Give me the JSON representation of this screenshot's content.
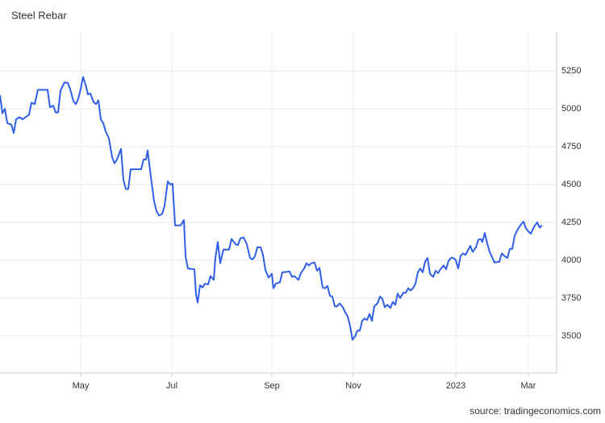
{
  "chart_data": {
    "type": "line",
    "title": "Steel Rebar",
    "source": "source: tradingeconomics.com",
    "x": [
      0,
      1.2,
      2.4,
      3.6,
      5.6,
      6.8,
      8,
      9.6,
      11.2,
      14.4,
      15.6,
      17.2,
      18.8,
      23.6,
      24.8,
      26.4,
      27.6,
      28.8,
      30,
      32,
      33.6,
      34.8,
      36.4,
      37.6,
      38.8,
      40,
      41.2,
      42.4,
      43.6,
      44.8,
      46.4,
      47.6,
      48.8,
      50,
      51.2,
      52.4,
      54,
      55.6,
      56.8,
      58,
      60,
      61.2,
      62.4,
      63.6,
      64.8,
      70,
      71.2,
      72.4,
      73.2,
      74.8,
      76.4,
      77.6,
      78.8,
      80.4,
      81.6,
      83.2,
      84.4,
      85.6,
      86.8,
      89.6,
      91.2,
      92,
      93.2,
      96.4,
      97.2,
      98,
      99.2,
      100.4,
      101.6,
      103.2,
      104.4,
      106,
      106.8,
      108,
      109.2,
      110.8,
      113.6,
      114.8,
      116.8,
      118,
      119.2,
      120.8,
      122.4,
      124,
      125.2,
      126.4,
      127.6,
      129.2,
      130.4,
      131.6,
      133.2,
      134.8,
      135.6,
      136.8,
      138.8,
      140,
      143.6,
      144.8,
      146,
      148,
      149.2,
      150.8,
      152,
      153.2,
      154.4,
      156,
      157.2,
      158.4,
      160,
      161.2,
      162.4,
      163.6,
      164.8,
      166,
      167.2,
      168.4,
      170,
      171.2,
      172.4,
      173.6,
      174.8,
      176,
      177.2,
      178.4,
      179.6,
      180.8,
      182,
      183.2,
      184.4,
      185.6,
      187.2,
      188.4,
      189.6,
      190.8,
      192,
      193.6,
      194.8,
      196,
      197.2,
      198.4,
      200,
      201.2,
      202.4,
      203.6,
      204.8,
      206,
      207.2,
      208.4,
      209.6,
      210.8,
      212,
      213.2,
      214.8,
      216,
      217.2,
      218.4,
      220,
      221.2,
      222.4,
      223.6,
      224.8,
      226,
      227.2,
      228.4,
      229.6,
      230.8,
      232,
      233.2,
      234.4,
      236,
      237.2,
      238.4,
      239.2,
      240.4,
      241.6,
      242.8,
      244,
      245.2,
      247.6,
      248.8,
      250.4,
      251.6,
      252.8,
      254,
      255.2,
      256.4,
      258,
      259.6,
      260.8,
      262,
      263.2,
      264.8,
      266.4,
      267.6,
      268.8
    ],
    "series": [
      {
        "name": "Steel Rebar",
        "color": "#2f5fe8",
        "values": [
          5090,
          4970,
          5000,
          4905,
          4895,
          4840,
          4930,
          4945,
          4930,
          4960,
          5040,
          5030,
          5125,
          5125,
          5010,
          5020,
          4975,
          4975,
          5120,
          5175,
          5170,
          5130,
          5050,
          5030,
          5065,
          5130,
          5210,
          5160,
          5095,
          5100,
          5045,
          5030,
          5055,
          4930,
          4905,
          4850,
          4805,
          4680,
          4640,
          4665,
          4735,
          4530,
          4470,
          4470,
          4600,
          4600,
          4665,
          4665,
          4725,
          4550,
          4390,
          4325,
          4295,
          4305,
          4360,
          4520,
          4500,
          4505,
          4230,
          4230,
          4265,
          4025,
          3945,
          3940,
          3775,
          3720,
          3835,
          3820,
          3845,
          3840,
          3895,
          3870,
          4015,
          4120,
          3980,
          4070,
          4070,
          4140,
          4105,
          4100,
          4145,
          4150,
          4105,
          4015,
          4005,
          4025,
          4085,
          4085,
          4035,
          3935,
          3885,
          3910,
          3815,
          3845,
          3855,
          3920,
          3925,
          3890,
          3895,
          3870,
          3915,
          3945,
          3980,
          3965,
          3980,
          3985,
          3930,
          3950,
          3820,
          3815,
          3830,
          3765,
          3760,
          3695,
          3695,
          3715,
          3690,
          3655,
          3630,
          3565,
          3475,
          3495,
          3535,
          3535,
          3600,
          3615,
          3605,
          3645,
          3600,
          3695,
          3715,
          3760,
          3745,
          3690,
          3705,
          3685,
          3725,
          3705,
          3780,
          3750,
          3785,
          3785,
          3815,
          3800,
          3815,
          3845,
          3920,
          3945,
          3920,
          3990,
          4015,
          3910,
          3890,
          3930,
          3915,
          3940,
          3965,
          3940,
          3995,
          4015,
          4015,
          4000,
          3945,
          4030,
          4045,
          4035,
          4065,
          4095,
          4055,
          4085,
          4135,
          4140,
          4120,
          4180,
          4110,
          4055,
          4020,
          3985,
          3990,
          4045,
          4025,
          4015,
          4075,
          4075,
          4160,
          4195,
          4230,
          4255,
          4210,
          4190,
          4175,
          4220,
          4250,
          4215,
          4230
        ]
      }
    ],
    "xlim": [
      0,
      276
    ],
    "ylim": [
      3255,
      5505
    ],
    "xticks": [
      {
        "value": 40,
        "label": "May"
      },
      {
        "value": 85.2,
        "label": "Jul"
      },
      {
        "value": 134.8,
        "label": "Sep"
      },
      {
        "value": 175.2,
        "label": "Nov"
      },
      {
        "value": 226,
        "label": "2023"
      },
      {
        "value": 262,
        "label": "Mar"
      }
    ],
    "yticks": [
      3500,
      3750,
      4000,
      4250,
      4500,
      4750,
      5000,
      5250
    ],
    "grid": true
  }
}
